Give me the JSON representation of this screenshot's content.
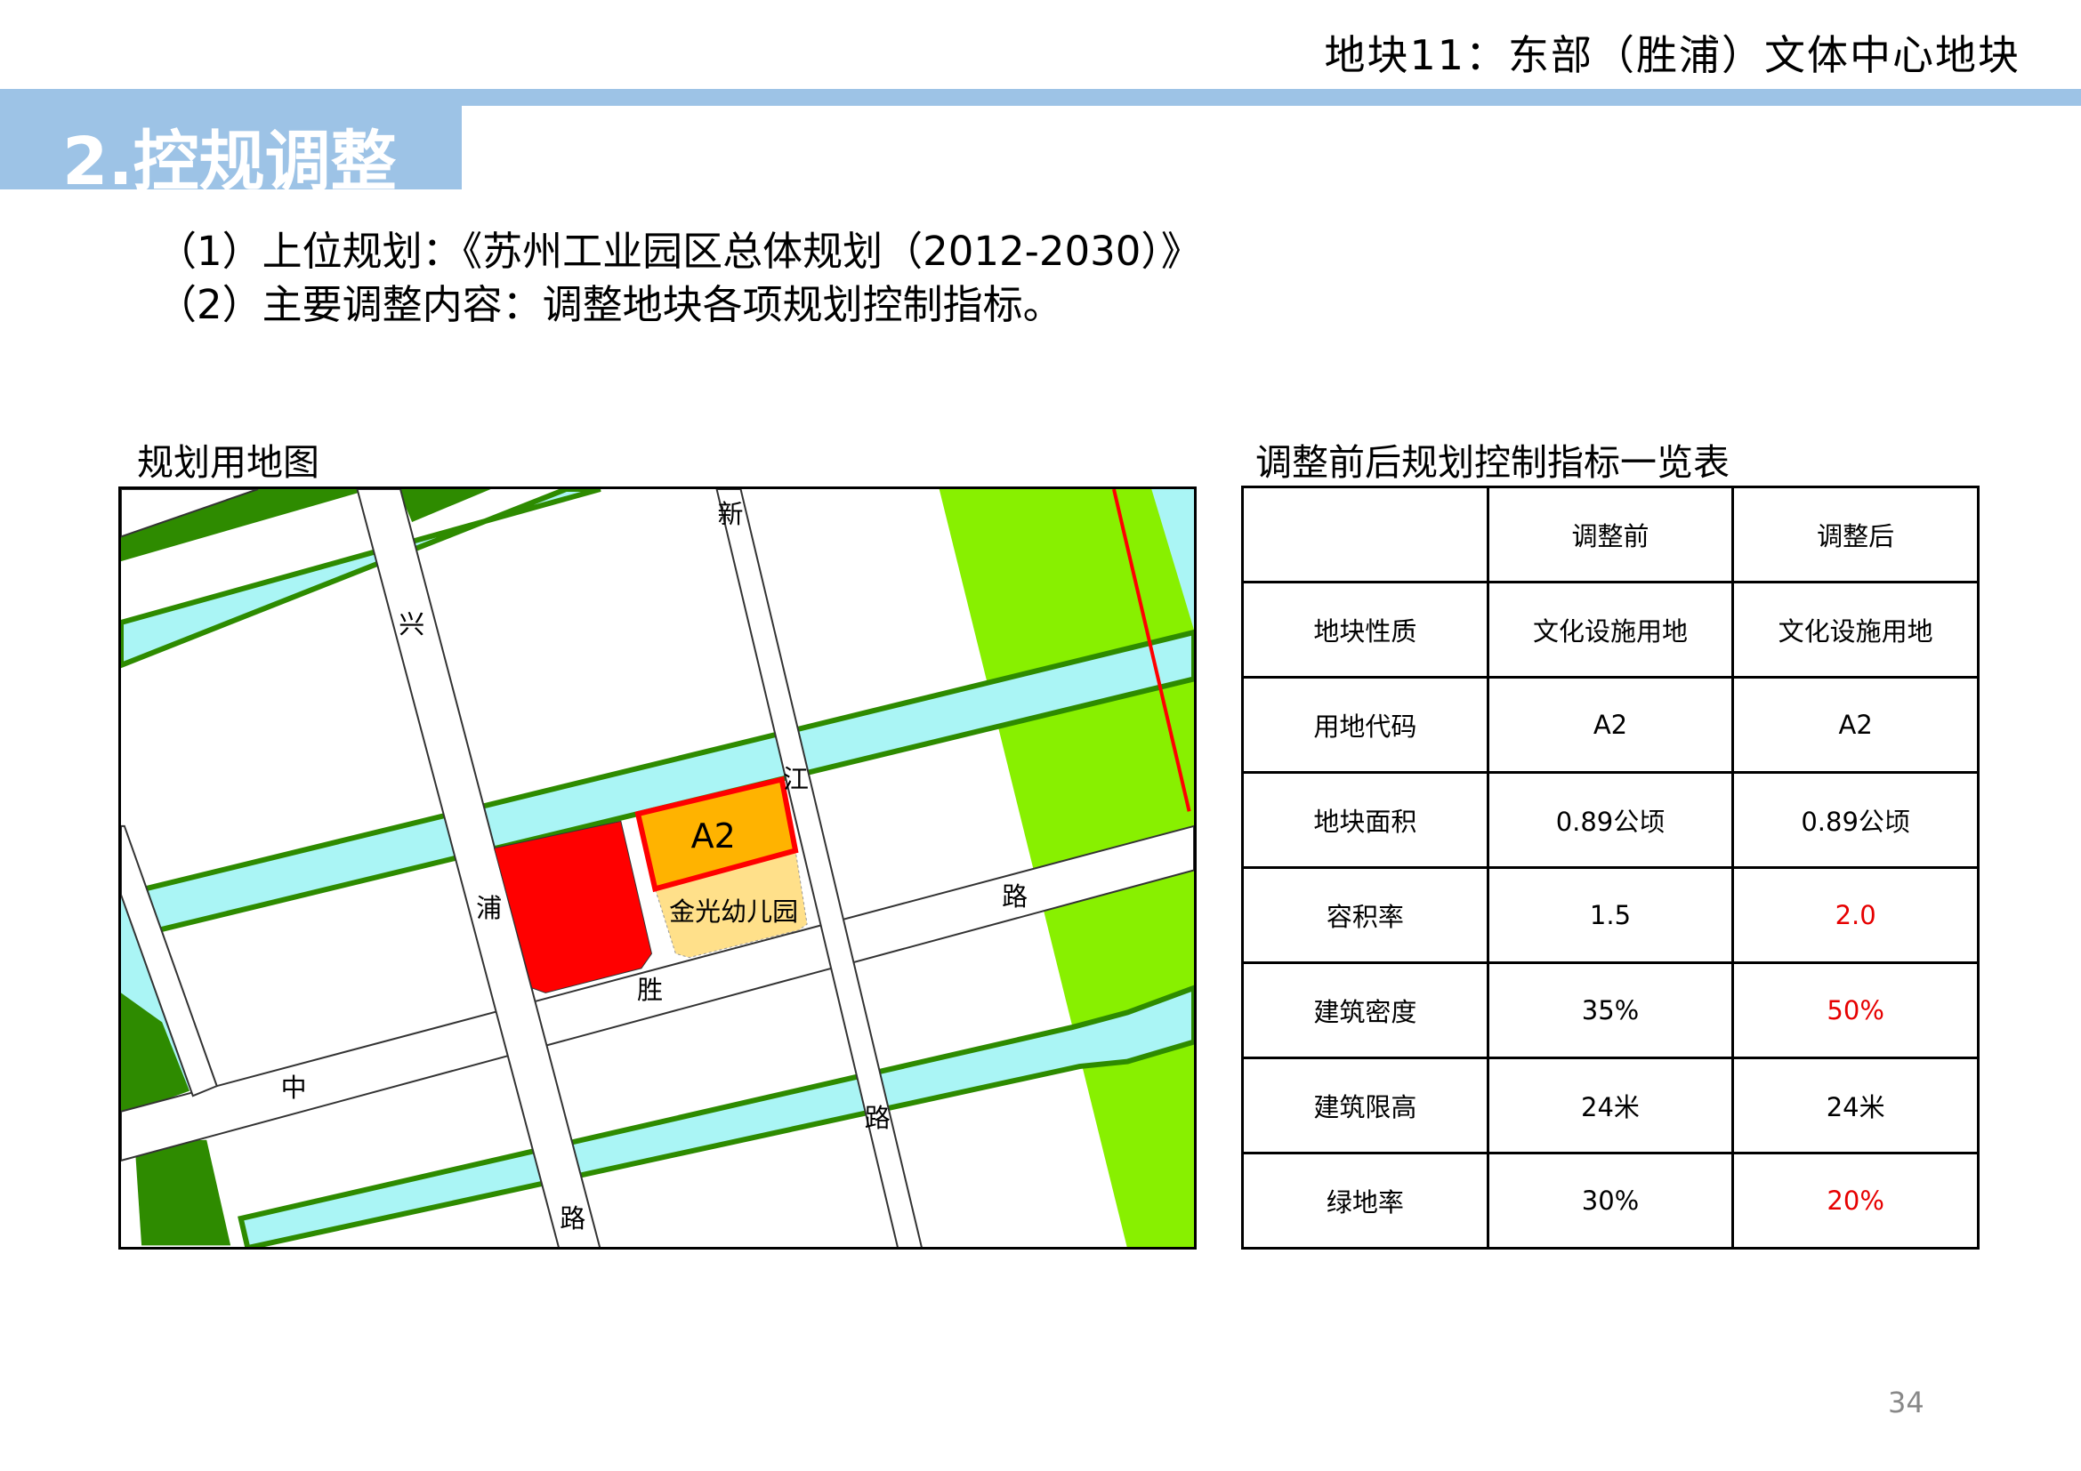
{
  "header": {
    "title": "地块11：东部（胜浦）文体中心地块"
  },
  "section": {
    "title": "2.控规调整"
  },
  "intro": {
    "line1": "（1）上位规划：《苏州工业园区总体规划（2012-2030）》",
    "line2": "（2）主要调整内容：调整地块各项规划控制指标。"
  },
  "map": {
    "caption": "规划用地图",
    "labels": {
      "xin": "新",
      "xing": "兴",
      "jiang": "江",
      "pu": "浦",
      "lu1": "路",
      "sheng": "胜",
      "zhong": "中",
      "lu2": "路",
      "lu3": "路",
      "a2": "A2",
      "kindergarten": "金光幼儿园"
    },
    "colors": {
      "site": "#ffb300",
      "site_border": "#ff0000",
      "culture": "#ff0000",
      "kindergarten": "#ffe08a",
      "water": "#aaf5f5",
      "green": "#88f000",
      "forest": "#2e8b00"
    }
  },
  "table": {
    "caption": "调整前后规划控制指标一览表",
    "header": [
      "",
      "调整前",
      "调整后"
    ],
    "rows": [
      {
        "label": "地块性质",
        "before": "文化设施用地",
        "after": "文化设施用地",
        "changed": false
      },
      {
        "label": "用地代码",
        "before": "A2",
        "after": "A2",
        "changed": false
      },
      {
        "label": "地块面积",
        "before": "0.89公顷",
        "after": "0.89公顷",
        "changed": false
      },
      {
        "label": "容积率",
        "before": "1.5",
        "after": "2.0",
        "changed": true
      },
      {
        "label": "建筑密度",
        "before": "35%",
        "after": "50%",
        "changed": true
      },
      {
        "label": "建筑限高",
        "before": "24米",
        "after": "24米",
        "changed": false
      },
      {
        "label": "绿地率",
        "before": "30%",
        "after": "20%",
        "changed": true
      }
    ],
    "changed_color": "#e60000"
  },
  "page": {
    "number": "34"
  }
}
